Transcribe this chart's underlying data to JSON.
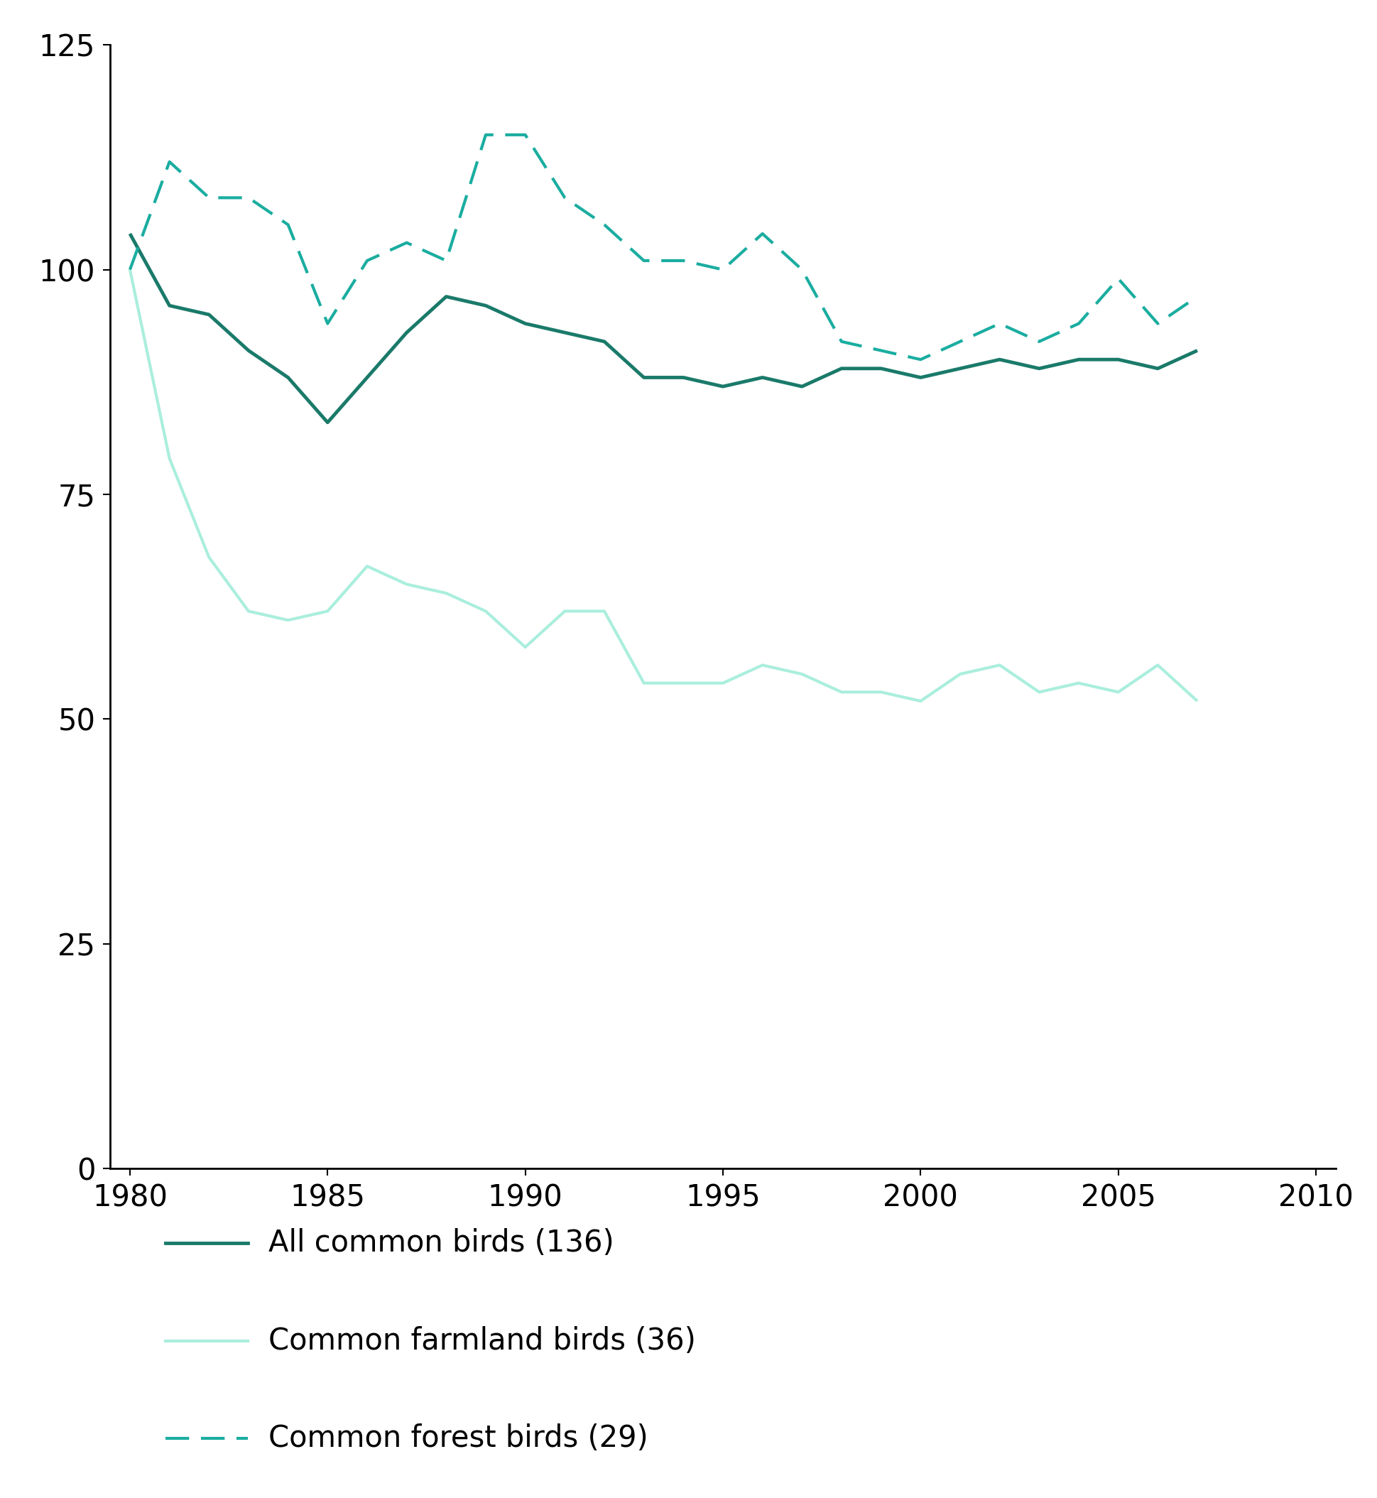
{
  "years": [
    1980,
    1981,
    1982,
    1983,
    1984,
    1985,
    1986,
    1987,
    1988,
    1989,
    1990,
    1991,
    1992,
    1993,
    1994,
    1995,
    1996,
    1997,
    1998,
    1999,
    2000,
    2001,
    2002,
    2003,
    2004,
    2005,
    2006,
    2007
  ],
  "all_common_birds": [
    104,
    96,
    95,
    91,
    88,
    83,
    88,
    93,
    97,
    96,
    94,
    93,
    92,
    88,
    88,
    87,
    88,
    87,
    89,
    89,
    88,
    89,
    90,
    89,
    90,
    90,
    89,
    91
  ],
  "farmland_birds": [
    100,
    79,
    68,
    62,
    61,
    62,
    67,
    65,
    64,
    62,
    58,
    62,
    62,
    54,
    54,
    54,
    56,
    55,
    53,
    53,
    52,
    55,
    56,
    53,
    54,
    53,
    56,
    52
  ],
  "forest_birds": [
    100,
    112,
    108,
    108,
    105,
    94,
    101,
    103,
    101,
    115,
    115,
    108,
    105,
    101,
    101,
    100,
    104,
    100,
    92,
    91,
    90,
    92,
    94,
    92,
    94,
    99,
    94,
    97
  ],
  "color_all": "#1a7a6a",
  "color_farmland": "#aaeedd",
  "color_forest": "#1aada0",
  "legend_labels": [
    "All common birds (136)",
    "Common farmland birds (36)",
    "Common forest birds (29)"
  ],
  "xlim": [
    1979.5,
    2010.5
  ],
  "ylim": [
    0,
    125
  ],
  "yticks": [
    0,
    25,
    50,
    75,
    100,
    125
  ],
  "xticks": [
    1980,
    1985,
    1990,
    1995,
    2000,
    2005,
    2010
  ],
  "linewidth_all": 3.5,
  "linewidth_farmland": 3.0,
  "linewidth_forest": 3.0,
  "tick_fontsize": 30,
  "legend_fontsize": 30
}
